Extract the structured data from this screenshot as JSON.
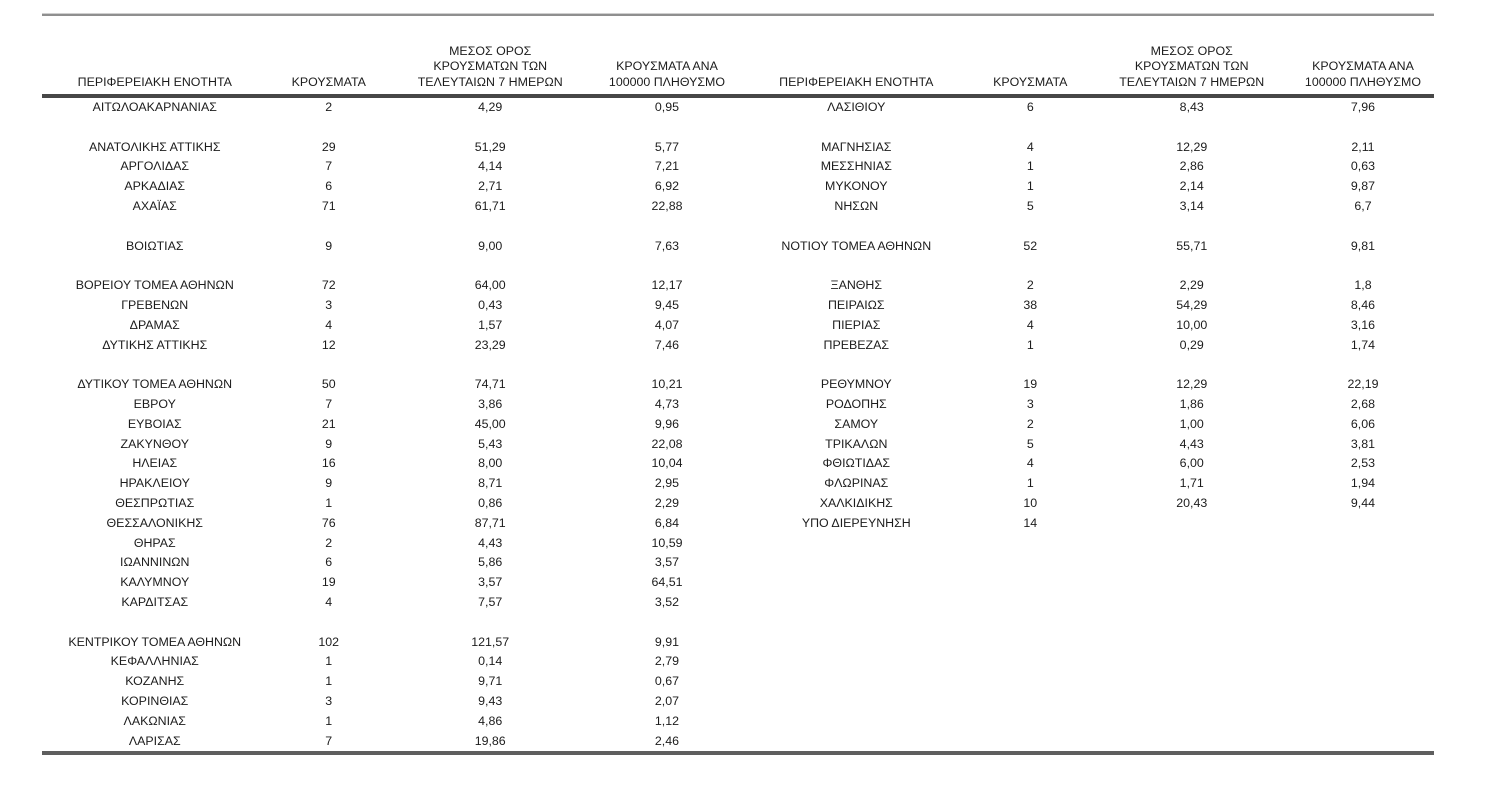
{
  "table": {
    "headers": {
      "region": "ΠΕΡΙΦΕΡΕΙΑΚΗ ΕΝΟΤΗΤΑ",
      "cases": "ΚΡΟΥΣΜΑΤΑ",
      "avg7_line1": "ΜΕΣΟΣ ΟΡΟΣ",
      "avg7_line2": "ΚΡΟΥΣΜΑΤΩΝ ΤΩΝ",
      "avg7_line3": "ΤΕΛΕΥΤΑΙΩΝ 7 ΗΜΕΡΩΝ",
      "per100k_line1": "ΚΡΟΥΣΜΑΤΑ ΑΝΑ",
      "per100k_line2": "100000 ΠΛΗΘΥΣΜΟ"
    },
    "rows": [
      {
        "left": [
          "ΑΙΤΩΛΟΑΚΑΡΝΑΝΙΑΣ",
          "2",
          "4,29",
          "0,95"
        ],
        "right": [
          "ΛΑΣΙΘΙΟΥ",
          "6",
          "8,43",
          "7,96"
        ]
      },
      {
        "left": [
          "",
          "",
          "",
          ""
        ],
        "right": [
          "",
          "",
          "",
          ""
        ]
      },
      {
        "left": [
          "ΑΝΑΤΟΛΙΚΗΣ ΑΤΤΙΚΗΣ",
          "29",
          "51,29",
          "5,77"
        ],
        "right": [
          "ΜΑΓΝΗΣΙΑΣ",
          "4",
          "12,29",
          "2,11"
        ]
      },
      {
        "left": [
          "ΑΡΓΟΛΙΔΑΣ",
          "7",
          "4,14",
          "7,21"
        ],
        "right": [
          "ΜΕΣΣΗΝΙΑΣ",
          "1",
          "2,86",
          "0,63"
        ]
      },
      {
        "left": [
          "ΑΡΚΑΔΙΑΣ",
          "6",
          "2,71",
          "6,92"
        ],
        "right": [
          "ΜΥΚΟΝΟΥ",
          "1",
          "2,14",
          "9,87"
        ]
      },
      {
        "left": [
          "ΑΧΑΪΑΣ",
          "71",
          "61,71",
          "22,88"
        ],
        "right": [
          "ΝΗΣΩΝ",
          "5",
          "3,14",
          "6,7"
        ]
      },
      {
        "left": [
          "",
          "",
          "",
          ""
        ],
        "right": [
          "",
          "",
          "",
          ""
        ]
      },
      {
        "left": [
          "ΒΟΙΩΤΙΑΣ",
          "9",
          "9,00",
          "7,63"
        ],
        "right": [
          "ΝΟΤΙΟΥ ΤΟΜΕΑ ΑΘΗΝΩΝ",
          "52",
          "55,71",
          "9,81"
        ]
      },
      {
        "left": [
          "",
          "",
          "",
          ""
        ],
        "right": [
          "",
          "",
          "",
          ""
        ]
      },
      {
        "left": [
          "ΒΟΡΕΙΟΥ ΤΟΜΕΑ ΑΘΗΝΩΝ",
          "72",
          "64,00",
          "12,17"
        ],
        "right": [
          "ΞΑΝΘΗΣ",
          "2",
          "2,29",
          "1,8"
        ]
      },
      {
        "left": [
          "ΓΡΕΒΕΝΩΝ",
          "3",
          "0,43",
          "9,45"
        ],
        "right": [
          "ΠΕΙΡΑΙΩΣ",
          "38",
          "54,29",
          "8,46"
        ]
      },
      {
        "left": [
          "ΔΡΑΜΑΣ",
          "4",
          "1,57",
          "4,07"
        ],
        "right": [
          "ΠΙΕΡΙΑΣ",
          "4",
          "10,00",
          "3,16"
        ]
      },
      {
        "left": [
          "ΔΥΤΙΚΗΣ ΑΤΤΙΚΗΣ",
          "12",
          "23,29",
          "7,46"
        ],
        "right": [
          "ΠΡΕΒΕΖΑΣ",
          "1",
          "0,29",
          "1,74"
        ]
      },
      {
        "left": [
          "",
          "",
          "",
          ""
        ],
        "right": [
          "",
          "",
          "",
          ""
        ]
      },
      {
        "left": [
          "ΔΥΤΙΚΟΥ ΤΟΜΕΑ ΑΘΗΝΩΝ",
          "50",
          "74,71",
          "10,21"
        ],
        "right": [
          "ΡΕΘΥΜΝΟΥ",
          "19",
          "12,29",
          "22,19"
        ]
      },
      {
        "left": [
          "ΕΒΡΟΥ",
          "7",
          "3,86",
          "4,73"
        ],
        "right": [
          "ΡΟΔΟΠΗΣ",
          "3",
          "1,86",
          "2,68"
        ]
      },
      {
        "left": [
          "ΕΥΒΟΙΑΣ",
          "21",
          "45,00",
          "9,96"
        ],
        "right": [
          "ΣΑΜΟΥ",
          "2",
          "1,00",
          "6,06"
        ]
      },
      {
        "left": [
          "ΖΑΚΥΝΘΟΥ",
          "9",
          "5,43",
          "22,08"
        ],
        "right": [
          "ΤΡΙΚΑΛΩΝ",
          "5",
          "4,43",
          "3,81"
        ]
      },
      {
        "left": [
          "ΗΛΕΙΑΣ",
          "16",
          "8,00",
          "10,04"
        ],
        "right": [
          "ΦΘΙΩΤΙΔΑΣ",
          "4",
          "6,00",
          "2,53"
        ]
      },
      {
        "left": [
          "ΗΡΑΚΛΕΙΟΥ",
          "9",
          "8,71",
          "2,95"
        ],
        "right": [
          "ΦΛΩΡΙΝΑΣ",
          "1",
          "1,71",
          "1,94"
        ]
      },
      {
        "left": [
          "ΘΕΣΠΡΩΤΙΑΣ",
          "1",
          "0,86",
          "2,29"
        ],
        "right": [
          "ΧΑΛΚΙΔΙΚΗΣ",
          "10",
          "20,43",
          "9,44"
        ]
      },
      {
        "left": [
          "ΘΕΣΣΑΛΟΝΙΚΗΣ",
          "76",
          "87,71",
          "6,84"
        ],
        "right": [
          "ΥΠΟ ΔΙΕΡΕΥΝΗΣΗ",
          "14",
          "",
          ""
        ]
      },
      {
        "left": [
          "ΘΗΡΑΣ",
          "2",
          "4,43",
          "10,59"
        ],
        "right": [
          "",
          "",
          "",
          ""
        ]
      },
      {
        "left": [
          "ΙΩΑΝΝΙΝΩΝ",
          "6",
          "5,86",
          "3,57"
        ],
        "right": [
          "",
          "",
          "",
          ""
        ]
      },
      {
        "left": [
          "ΚΑΛΥΜΝΟΥ",
          "19",
          "3,57",
          "64,51"
        ],
        "right": [
          "",
          "",
          "",
          ""
        ]
      },
      {
        "left": [
          "ΚΑΡΔΙΤΣΑΣ",
          "4",
          "7,57",
          "3,52"
        ],
        "right": [
          "",
          "",
          "",
          ""
        ]
      },
      {
        "left": [
          "",
          "",
          "",
          ""
        ],
        "right": [
          "",
          "",
          "",
          ""
        ]
      },
      {
        "left": [
          "ΚΕΝΤΡΙΚΟΥ ΤΟΜΕΑ ΑΘΗΝΩΝ",
          "102",
          "121,57",
          "9,91"
        ],
        "right": [
          "",
          "",
          "",
          ""
        ]
      },
      {
        "left": [
          "ΚΕΦΑΛΛΗΝΙΑΣ",
          "1",
          "0,14",
          "2,79"
        ],
        "right": [
          "",
          "",
          "",
          ""
        ]
      },
      {
        "left": [
          "ΚΟΖΑΝΗΣ",
          "1",
          "9,71",
          "0,67"
        ],
        "right": [
          "",
          "",
          "",
          ""
        ]
      },
      {
        "left": [
          "ΚΟΡΙΝΘΙΑΣ",
          "3",
          "9,43",
          "2,07"
        ],
        "right": [
          "",
          "",
          "",
          ""
        ]
      },
      {
        "left": [
          "ΛΑΚΩΝΙΑΣ",
          "1",
          "4,86",
          "1,12"
        ],
        "right": [
          "",
          "",
          "",
          ""
        ]
      },
      {
        "left": [
          "ΛΑΡΙΣΑΣ",
          "7",
          "19,86",
          "2,46"
        ],
        "right": [
          "",
          "",
          "",
          ""
        ]
      }
    ]
  }
}
